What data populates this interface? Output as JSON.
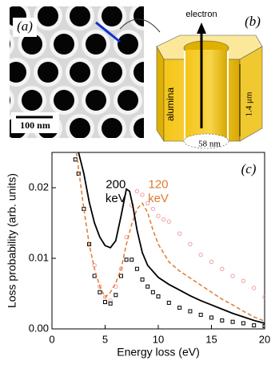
{
  "panel_a": {
    "label": "(a)",
    "scale_bar": "100 nm"
  },
  "panel_b": {
    "label": "(b)",
    "beam": "electron",
    "material": "alumina",
    "height": "1.4 μm",
    "diameter": "58 nm"
  },
  "chart_data": {
    "type": "line",
    "label": "(c)",
    "x_label": "Energy loss (eV)",
    "y_label": "Loss probability (arb. units)",
    "xlim": [
      0,
      20
    ],
    "xticks": [
      0,
      5,
      10,
      15,
      20
    ],
    "ylim": [
      0,
      0.025
    ],
    "yticks": [
      {
        "value": 0,
        "label": "0.00"
      },
      {
        "value": 0.01,
        "label": "0.01"
      },
      {
        "value": 0.02,
        "label": "0.02"
      }
    ],
    "annotations": [
      {
        "text": "200",
        "color": "#000000",
        "x": 6,
        "y": 0.0204
      },
      {
        "text": "keV",
        "color": "#000000",
        "x": 6,
        "y": 0.0184
      },
      {
        "text": "120",
        "color": "#e07a30",
        "x": 10,
        "y": 0.0204
      },
      {
        "text": "keV",
        "color": "#e07a30",
        "x": 10,
        "y": 0.0184
      }
    ],
    "series": [
      {
        "color": "#000000",
        "style": "solid",
        "x": [
          2.5,
          3,
          3.5,
          4,
          4.5,
          5,
          5.5,
          6,
          6.5,
          7,
          7.3,
          7.6,
          8,
          8.5,
          9,
          10,
          11,
          12,
          13,
          14,
          15,
          16,
          17,
          18,
          19,
          20
        ],
        "values": [
          0.025,
          0.022,
          0.018,
          0.015,
          0.013,
          0.0118,
          0.0115,
          0.0125,
          0.016,
          0.0198,
          0.0195,
          0.0175,
          0.014,
          0.0108,
          0.009,
          0.0073,
          0.0063,
          0.0055,
          0.0047,
          0.004,
          0.0034,
          0.0028,
          0.0022,
          0.0017,
          0.0012,
          0.0008
        ]
      },
      {
        "color": "#e07a30",
        "style": "dashed",
        "x": [
          2.3,
          3,
          3.5,
          4,
          4.5,
          5,
          5.5,
          6,
          6.5,
          7,
          7.5,
          8,
          8.5,
          9,
          9.5,
          10,
          11,
          12,
          13,
          14,
          15,
          16,
          17,
          18,
          19,
          20
        ],
        "values": [
          0.025,
          0.017,
          0.012,
          0.0085,
          0.006,
          0.0045,
          0.0052,
          0.0065,
          0.0085,
          0.012,
          0.0148,
          0.017,
          0.0178,
          0.0165,
          0.014,
          0.012,
          0.0095,
          0.0082,
          0.0072,
          0.0062,
          0.0052,
          0.0042,
          0.0034,
          0.0025,
          0.0017,
          0.0011
        ]
      },
      {
        "color": "#000000",
        "style": "squares",
        "x": [
          2.2,
          2.5,
          3,
          3.5,
          4,
          4.5,
          5,
          5.5,
          6,
          6.5,
          7,
          7.5,
          8,
          8.5,
          9,
          9.5,
          10,
          11,
          12,
          13,
          14,
          15,
          16,
          17,
          18,
          19,
          20
        ],
        "values": [
          0.024,
          0.022,
          0.017,
          0.012,
          0.0075,
          0.0052,
          0.0038,
          0.0036,
          0.0048,
          0.0075,
          0.0098,
          0.0098,
          0.0085,
          0.007,
          0.006,
          0.0052,
          0.0046,
          0.0037,
          0.003,
          0.0025,
          0.002,
          0.0016,
          0.0012,
          0.001,
          0.0008,
          0.0005,
          0.0004
        ]
      },
      {
        "color": "#f0a0a0",
        "style": "circles",
        "x": [
          4,
          4.5,
          5,
          5.5,
          6,
          6.5,
          7,
          7.5,
          8,
          8.5,
          9,
          9.5,
          10,
          10.5,
          11,
          12,
          13,
          14,
          15,
          16,
          17,
          18,
          19,
          20
        ],
        "values": [
          0.009,
          0.006,
          0.0045,
          0.004,
          0.006,
          0.0085,
          0.013,
          0.0175,
          0.0195,
          0.019,
          0.0178,
          0.017,
          0.016,
          0.0155,
          0.0152,
          0.0135,
          0.012,
          0.0105,
          0.0095,
          0.0085,
          0.0075,
          0.0068,
          0.0058,
          0.0045
        ]
      }
    ]
  }
}
